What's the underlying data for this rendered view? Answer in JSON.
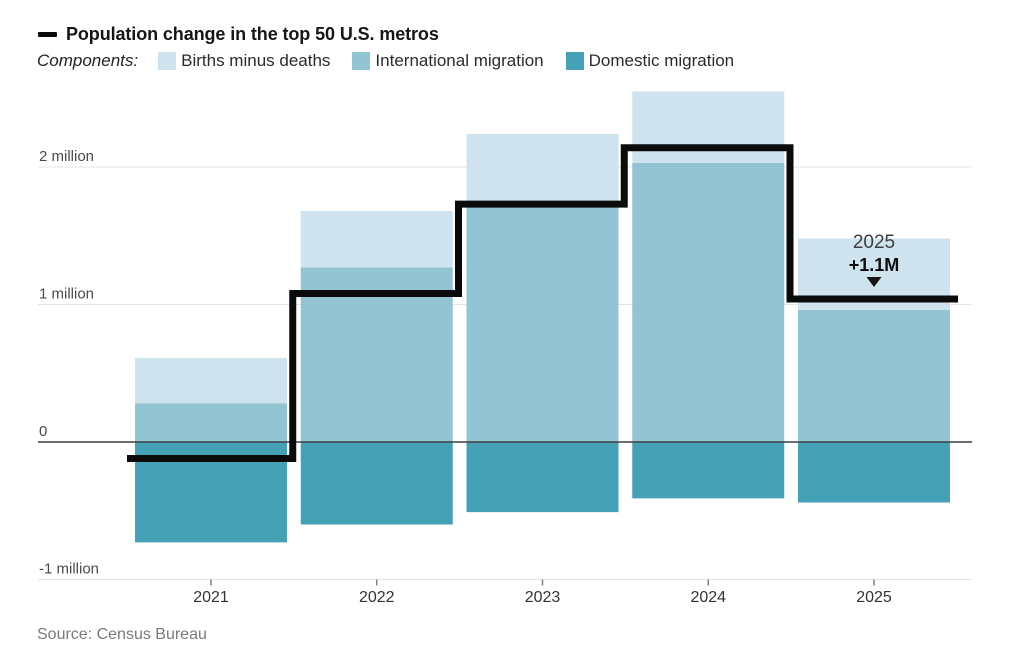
{
  "header": {
    "legend_intro": "Components:"
  },
  "chart_data": {
    "type": "bar",
    "stacked": true,
    "title": "Population change in the top 50 U.S. metros",
    "unit": "millions of people",
    "grid": true,
    "legend_position": "top",
    "categories": [
      "2021",
      "2022",
      "2023",
      "2024",
      "2025"
    ],
    "series": [
      {
        "name": "Births minus deaths",
        "color": "#cee3ed",
        "values": [
          0.33,
          0.41,
          0.51,
          0.52,
          0.52
        ]
      },
      {
        "name": "International migration",
        "color": "#93c4d4",
        "values": [
          0.28,
          1.27,
          1.73,
          2.03,
          0.96
        ]
      },
      {
        "name": "Domestic migration",
        "color": "#45a1b6",
        "values": [
          -0.73,
          -0.6,
          -0.51,
          -0.41,
          -0.44
        ]
      }
    ],
    "total_line": {
      "name": "Population change in the top 50 U.S. metros",
      "color": "#0b0b0b",
      "values": [
        -0.12,
        1.08,
        1.73,
        2.14,
        1.04
      ]
    },
    "y_ticks": [
      {
        "value": 2,
        "label": "2 million"
      },
      {
        "value": 1,
        "label": "1 million"
      },
      {
        "value": 0,
        "label": "0"
      },
      {
        "value": -1,
        "label": "-1 million"
      }
    ],
    "ylim": [
      -1,
      2.6
    ],
    "annotation": {
      "category": "2025",
      "title": "2025",
      "value": "+1.1M",
      "marker": "triangle-down"
    }
  },
  "source": "Source: Census Bureau"
}
